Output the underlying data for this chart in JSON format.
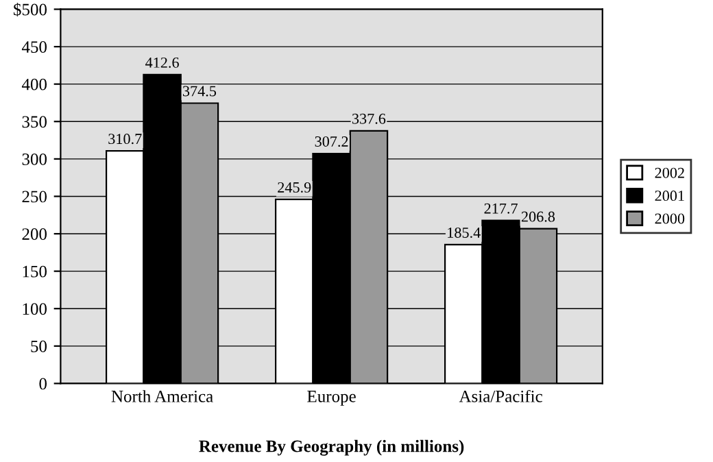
{
  "chart_data": {
    "type": "bar",
    "xlabel": "Revenue By Geography (in millions)",
    "categories": [
      "North America",
      "Europe",
      "Asia/Pacific"
    ],
    "series": [
      {
        "name": "2002",
        "color": "#ffffff",
        "values": [
          310.7,
          245.9,
          185.4
        ]
      },
      {
        "name": "2001",
        "color": "#000000",
        "values": [
          412.6,
          307.2,
          217.7
        ]
      },
      {
        "name": "2000",
        "color": "#999999",
        "values": [
          374.5,
          337.6,
          206.8
        ]
      }
    ],
    "ylim": [
      0,
      500
    ],
    "yticks": [
      0,
      50,
      100,
      150,
      200,
      250,
      300,
      350,
      400,
      450,
      {
        "value": 500,
        "label": "$500"
      }
    ],
    "grid": "y",
    "legend": "right",
    "data_labels": true
  }
}
